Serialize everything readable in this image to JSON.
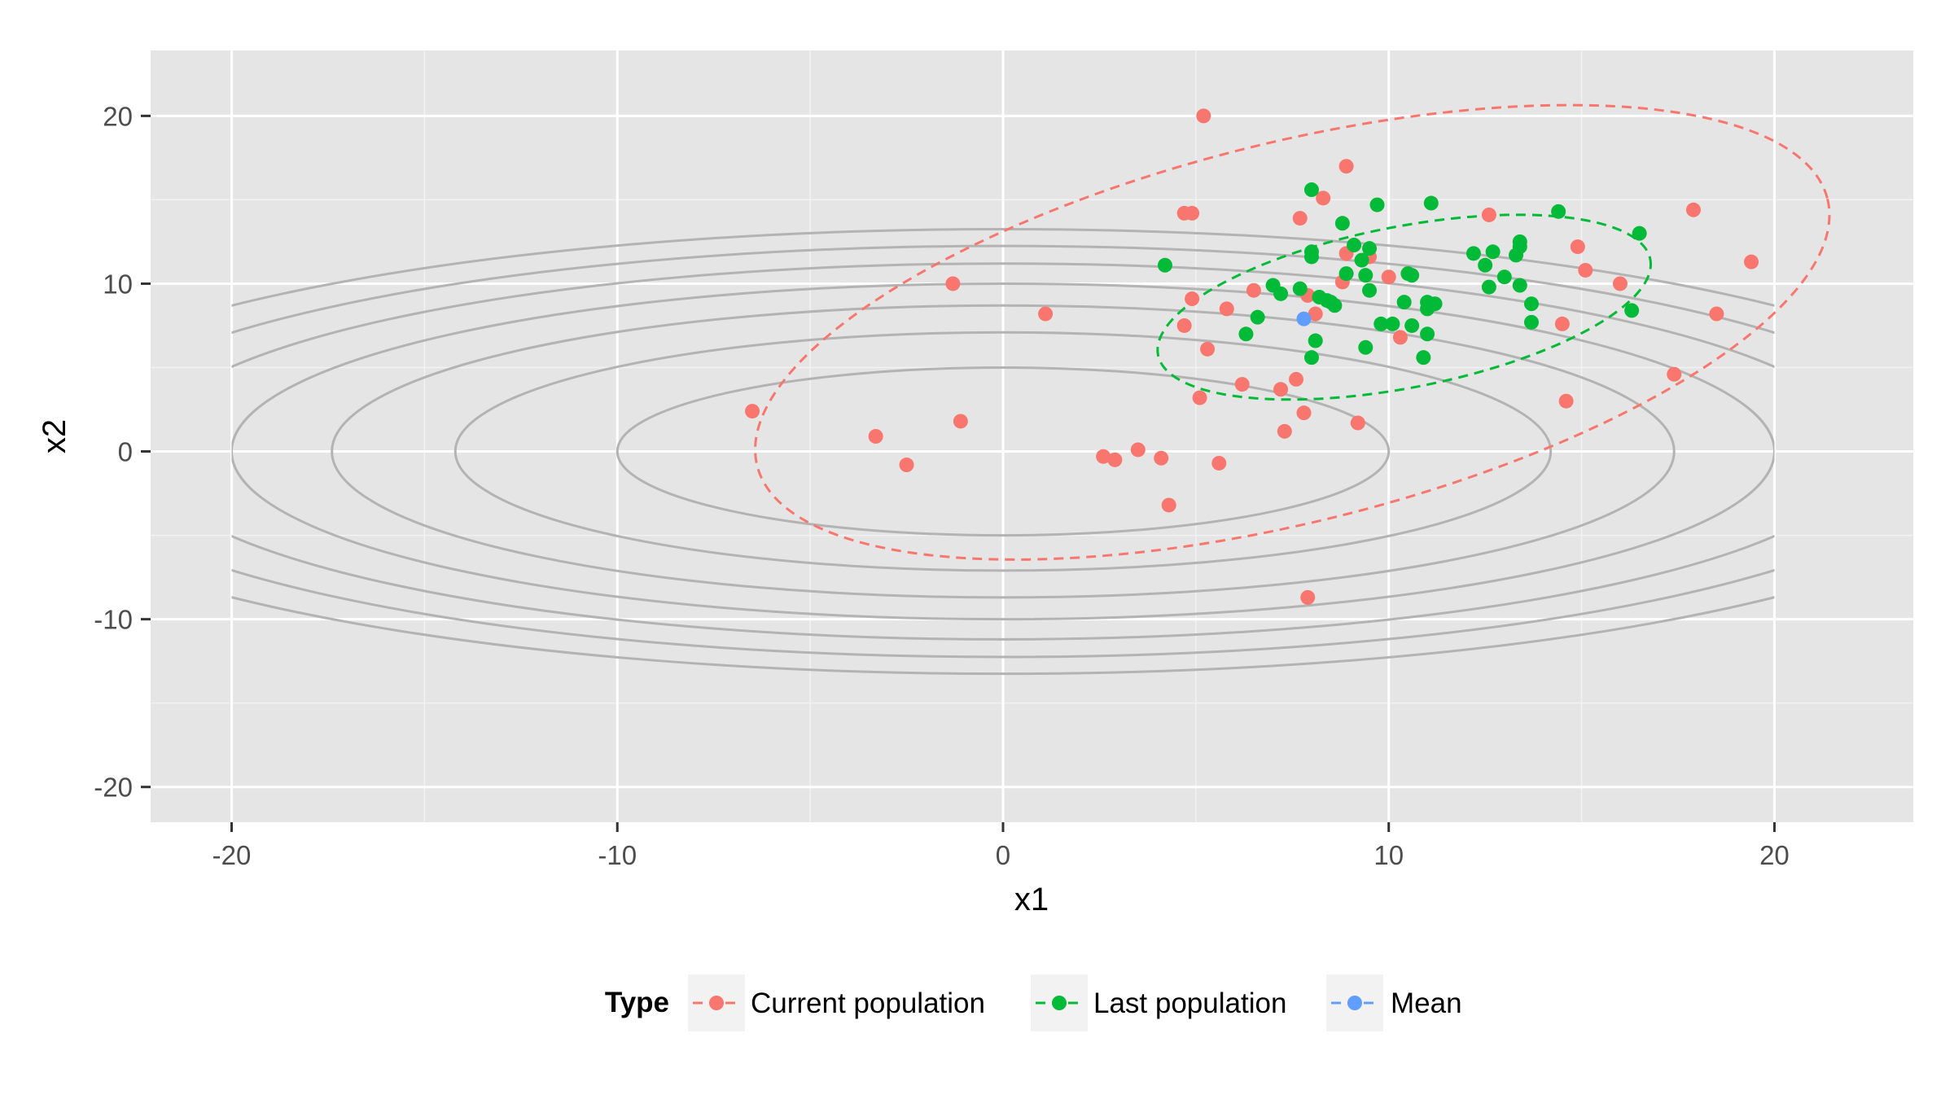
{
  "chart_data": {
    "type": "scatter",
    "title": "",
    "xlabel": "x1",
    "ylabel": "x2",
    "xlim": [
      -22.1,
      23.6
    ],
    "ylim": [
      -22.1,
      23.9
    ],
    "x_ticks": [
      -20,
      -10,
      0,
      10,
      20
    ],
    "x_tick_labels": [
      "-20",
      "-10",
      "0",
      "10",
      "20"
    ],
    "y_ticks": [
      -20,
      -10,
      0,
      10,
      20
    ],
    "y_tick_labels": [
      "-20",
      "-10",
      "0",
      "10",
      "20"
    ],
    "grid": true,
    "legend": {
      "title": "Type",
      "position": "bottom",
      "entries": [
        "Current population",
        "Last population",
        "Mean"
      ]
    },
    "background_contours": {
      "shape": "ellipse",
      "center": [
        0,
        0
      ],
      "levels": [
        {
          "rx": 10,
          "ry": 10
        },
        {
          "rx": 14.2,
          "ry": 14.2
        },
        {
          "rx": 17.4,
          "ry": 17.4
        },
        {
          "rx": 20.0,
          "ry": 20.0
        },
        {
          "rx": 22.4,
          "ry": 22.4
        },
        {
          "rx": 24.5,
          "ry": 24.5
        },
        {
          "rx": 26.5,
          "ry": 26.5
        }
      ],
      "y_scale": 0.5,
      "color": "#b3b3b3"
    },
    "series": [
      {
        "name": "Current population",
        "color": "#F8766D",
        "ellipse": {
          "cx": 7.5,
          "cy": 7.1,
          "rx": 14.3,
          "ry": 11.3,
          "angle_deg": 14
        },
        "points": [
          [
            5.2,
            20.0
          ],
          [
            8.9,
            17.0
          ],
          [
            -1.3,
            10.0
          ],
          [
            1.1,
            8.2
          ],
          [
            -6.5,
            2.4
          ],
          [
            -3.3,
            0.9
          ],
          [
            -2.5,
            -0.8
          ],
          [
            -1.1,
            1.8
          ],
          [
            2.6,
            -0.3
          ],
          [
            2.9,
            -0.5
          ],
          [
            3.5,
            0.1
          ],
          [
            4.1,
            -0.4
          ],
          [
            4.3,
            -3.2
          ],
          [
            5.6,
            -0.7
          ],
          [
            7.3,
            1.2
          ],
          [
            7.8,
            2.3
          ],
          [
            9.2,
            1.7
          ],
          [
            7.9,
            -8.7
          ],
          [
            4.7,
            14.2
          ],
          [
            4.9,
            14.2
          ],
          [
            4.9,
            9.1
          ],
          [
            4.7,
            7.5
          ],
          [
            5.8,
            8.5
          ],
          [
            5.3,
            6.1
          ],
          [
            6.5,
            9.6
          ],
          [
            5.1,
            3.2
          ],
          [
            6.2,
            4.0
          ],
          [
            7.2,
            3.7
          ],
          [
            7.6,
            4.3
          ],
          [
            7.7,
            13.9
          ],
          [
            8.3,
            15.1
          ],
          [
            8.9,
            11.8
          ],
          [
            8.8,
            10.1
          ],
          [
            9.5,
            11.6
          ],
          [
            10.0,
            10.4
          ],
          [
            10.3,
            6.8
          ],
          [
            8.1,
            8.2
          ],
          [
            7.9,
            9.3
          ],
          [
            12.6,
            14.1
          ],
          [
            14.5,
            7.6
          ],
          [
            14.6,
            3.0
          ],
          [
            14.9,
            12.2
          ],
          [
            15.1,
            10.8
          ],
          [
            16.0,
            10.0
          ],
          [
            17.4,
            4.6
          ],
          [
            17.9,
            14.4
          ],
          [
            18.5,
            8.2
          ],
          [
            19.4,
            11.3
          ]
        ]
      },
      {
        "name": "Last population",
        "color": "#00BA38",
        "ellipse": {
          "cx": 10.4,
          "cy": 8.6,
          "rx": 6.5,
          "ry": 4.8,
          "angle_deg": 11
        },
        "points": [
          [
            4.2,
            11.1
          ],
          [
            6.3,
            7.0
          ],
          [
            6.6,
            8.0
          ],
          [
            7.0,
            9.9
          ],
          [
            7.2,
            9.4
          ],
          [
            7.7,
            9.7
          ],
          [
            8.0,
            15.6
          ],
          [
            8.0,
            11.6
          ],
          [
            8.0,
            11.9
          ],
          [
            8.2,
            9.2
          ],
          [
            8.4,
            9.0
          ],
          [
            8.5,
            8.9
          ],
          [
            8.6,
            8.7
          ],
          [
            8.1,
            6.6
          ],
          [
            8.0,
            5.6
          ],
          [
            8.8,
            13.6
          ],
          [
            8.9,
            10.6
          ],
          [
            9.1,
            12.3
          ],
          [
            9.3,
            11.4
          ],
          [
            9.4,
            10.5
          ],
          [
            9.5,
            12.1
          ],
          [
            9.5,
            9.6
          ],
          [
            9.4,
            6.2
          ],
          [
            9.7,
            14.7
          ],
          [
            9.8,
            7.6
          ],
          [
            10.1,
            7.6
          ],
          [
            10.4,
            8.9
          ],
          [
            10.5,
            10.6
          ],
          [
            10.6,
            10.5
          ],
          [
            10.6,
            7.5
          ],
          [
            11.0,
            8.9
          ],
          [
            11.0,
            8.5
          ],
          [
            11.2,
            8.8
          ],
          [
            11.1,
            14.8
          ],
          [
            11.0,
            7.0
          ],
          [
            10.9,
            5.6
          ],
          [
            12.2,
            11.8
          ],
          [
            12.5,
            11.1
          ],
          [
            12.6,
            9.8
          ],
          [
            12.7,
            11.9
          ],
          [
            13.0,
            10.4
          ],
          [
            13.3,
            11.7
          ],
          [
            13.4,
            12.2
          ],
          [
            13.4,
            12.5
          ],
          [
            13.4,
            9.9
          ],
          [
            13.7,
            8.8
          ],
          [
            13.7,
            7.7
          ],
          [
            14.4,
            14.3
          ],
          [
            16.3,
            8.4
          ],
          [
            16.5,
            13.0
          ]
        ]
      },
      {
        "name": "Mean",
        "color": "#619CFF",
        "points": [
          [
            7.8,
            7.9
          ]
        ]
      }
    ]
  }
}
